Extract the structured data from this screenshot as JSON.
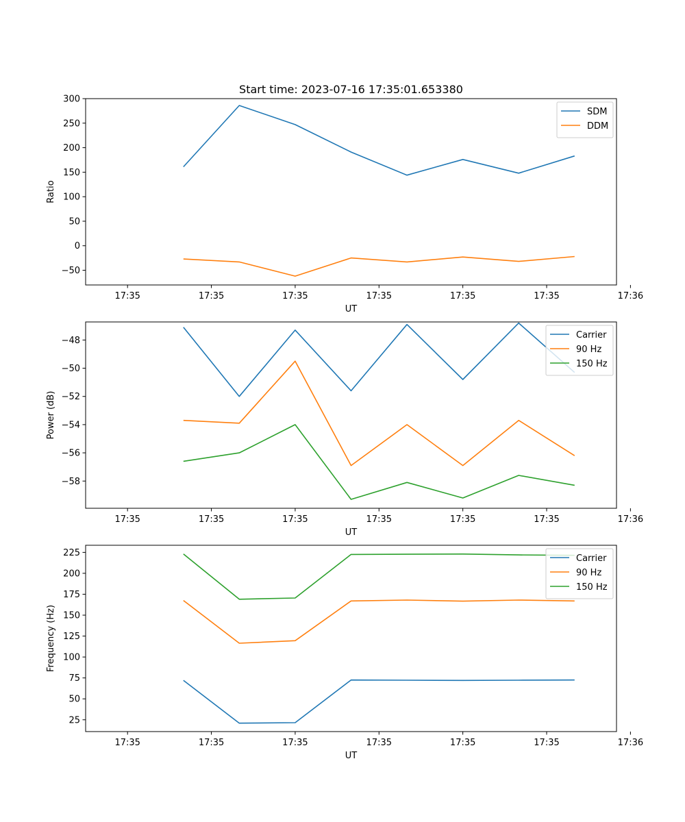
{
  "chart_data": [
    {
      "type": "line",
      "title": "Start time: 2023-07-16 17:35:01.653380",
      "xlabel": "UT",
      "ylabel": "Ratio",
      "x": [
        1,
        2,
        3,
        4,
        5,
        6,
        7,
        8
      ],
      "xlim": [
        -0.75,
        8.75
      ],
      "xticks": [
        0,
        1.5,
        3,
        4.5,
        6,
        7.5,
        9
      ],
      "xtick_labels": [
        "17:35",
        "17:35",
        "17:35",
        "17:35",
        "17:35",
        "17:35",
        "17:36"
      ],
      "ylim": [
        -80,
        300
      ],
      "yticks": [
        -50,
        0,
        50,
        100,
        150,
        200,
        250,
        300
      ],
      "ytick_labels": [
        "−50",
        "0",
        "50",
        "100",
        "150",
        "200",
        "250",
        "300"
      ],
      "legend_position": "top-right",
      "series": [
        {
          "name": "SDM",
          "color": "#1f77b4",
          "values": [
            161,
            286,
            247,
            191,
            144,
            176,
            148,
            183
          ]
        },
        {
          "name": "DDM",
          "color": "#ff7f0e",
          "values": [
            -27,
            -33,
            -62,
            -25,
            -33,
            -23,
            -32,
            -22
          ]
        }
      ]
    },
    {
      "type": "line",
      "title": "",
      "xlabel": "UT",
      "ylabel": "Power (dB)",
      "x": [
        1,
        2,
        3,
        4,
        5,
        6,
        7,
        8
      ],
      "xlim": [
        -0.75,
        8.75
      ],
      "xticks": [
        0,
        1.5,
        3,
        4.5,
        6,
        7.5,
        9
      ],
      "xtick_labels": [
        "17:35",
        "17:35",
        "17:35",
        "17:35",
        "17:35",
        "17:35",
        "17:36"
      ],
      "ylim": [
        -59.93,
        -46.72
      ],
      "yticks": [
        -58,
        -56,
        -54,
        -52,
        -50,
        -48
      ],
      "ytick_labels": [
        "−58",
        "−56",
        "−54",
        "−52",
        "−50",
        "−48"
      ],
      "legend_position": "top-right",
      "series": [
        {
          "name": "Carrier",
          "color": "#1f77b4",
          "values": [
            -47.1,
            -52.0,
            -47.3,
            -51.6,
            -46.9,
            -50.8,
            -46.8,
            -50.3
          ]
        },
        {
          "name": "90 Hz",
          "color": "#ff7f0e",
          "values": [
            -53.7,
            -53.9,
            -49.5,
            -56.9,
            -54.0,
            -56.9,
            -53.7,
            -56.2
          ]
        },
        {
          "name": "150 Hz",
          "color": "#2ca02c",
          "values": [
            -56.6,
            -56.0,
            -54.0,
            -59.3,
            -58.1,
            -59.2,
            -57.6,
            -58.3
          ]
        }
      ]
    },
    {
      "type": "line",
      "title": "",
      "xlabel": "UT",
      "ylabel": "Frequency (Hz)",
      "x": [
        1,
        2,
        3,
        4,
        5,
        6,
        7,
        8
      ],
      "xlim": [
        -0.75,
        8.75
      ],
      "xticks": [
        0,
        1.5,
        3,
        4.5,
        6,
        7.5,
        9
      ],
      "xtick_labels": [
        "17:35",
        "17:35",
        "17:35",
        "17:35",
        "17:35",
        "17:35",
        "17:36"
      ],
      "ylim": [
        10.9,
        233.5
      ],
      "yticks": [
        25,
        50,
        75,
        100,
        125,
        150,
        175,
        200,
        225
      ],
      "ytick_labels": [
        "25",
        "50",
        "75",
        "100",
        "125",
        "150",
        "175",
        "200",
        "225"
      ],
      "legend_position": "top-right",
      "series": [
        {
          "name": "Carrier",
          "color": "#1f77b4",
          "values": [
            72,
            21,
            21.5,
            72.5,
            72.3,
            72,
            72.3,
            72.5
          ]
        },
        {
          "name": "90 Hz",
          "color": "#ff7f0e",
          "values": [
            167.5,
            116.5,
            119.5,
            167,
            168,
            166.7,
            168,
            167
          ]
        },
        {
          "name": "150 Hz",
          "color": "#2ca02c",
          "values": [
            223,
            169,
            170.5,
            222.5,
            222.8,
            223,
            222,
            221.5
          ]
        }
      ]
    }
  ]
}
